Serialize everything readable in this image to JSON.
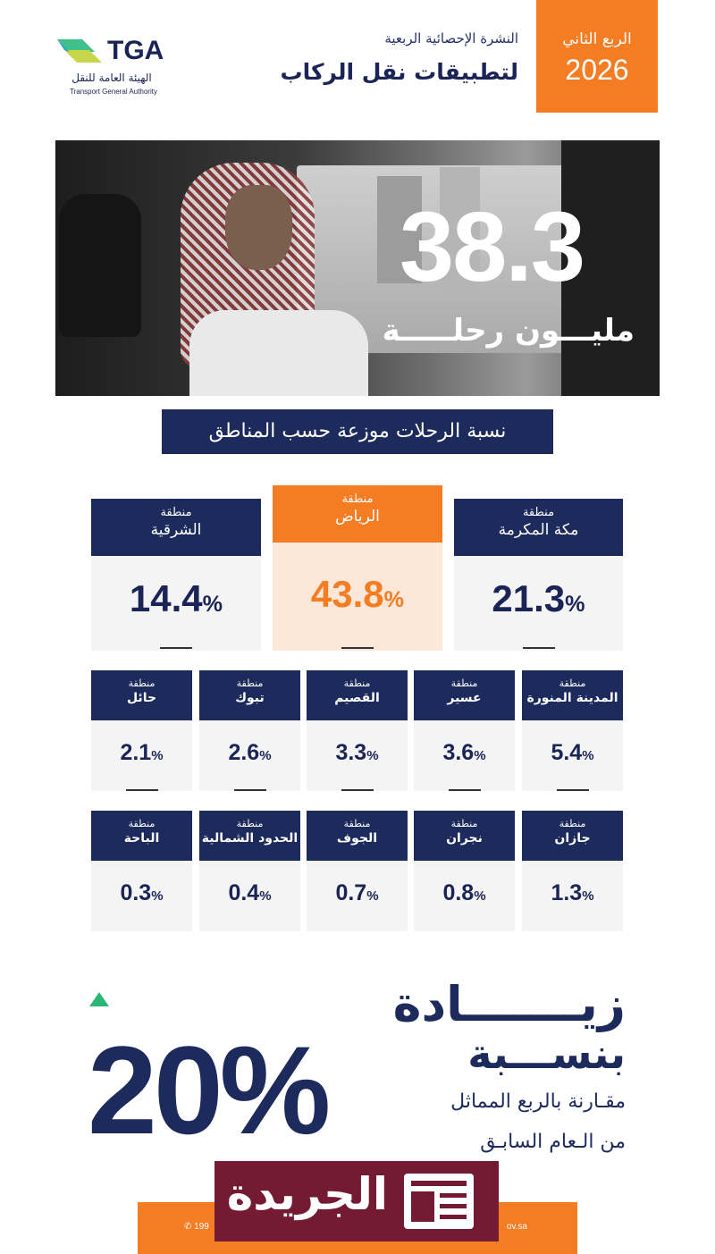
{
  "header": {
    "quarter": "الربع الثاني",
    "year": "2026",
    "bulletin": "النشرة الإحصائية الربعية",
    "title": "لتطبيقات نقل الركاب",
    "logo_mark": "TGA",
    "logo_ar": "الهيئة العامة للنقل",
    "logo_en": "Transport General Authority"
  },
  "hero": {
    "value": "38.3",
    "unit": "مليـــون رحلـــــة"
  },
  "section_title": "نسبة الرحلات موزعة حسب المناطق",
  "top_regions": [
    {
      "prefix": "منطقة",
      "name": "مكة المكرمة",
      "value": "21.3",
      "pct": "%"
    },
    {
      "prefix": "منطقة",
      "name": "الرياض",
      "value": "43.8",
      "pct": "%"
    },
    {
      "prefix": "منطقة",
      "name": "الشرقية",
      "value": "14.4",
      "pct": "%"
    }
  ],
  "row2": [
    {
      "prefix": "منطقة",
      "name": "المدينة المنورة",
      "value": "5.4",
      "pct": "%"
    },
    {
      "prefix": "منطقة",
      "name": "عسير",
      "value": "3.6",
      "pct": "%"
    },
    {
      "prefix": "منطقة",
      "name": "القصيم",
      "value": "3.3",
      "pct": "%"
    },
    {
      "prefix": "منطقة",
      "name": "تبوك",
      "value": "2.6",
      "pct": "%"
    },
    {
      "prefix": "منطقة",
      "name": "حائل",
      "value": "2.1",
      "pct": "%"
    }
  ],
  "row3": [
    {
      "prefix": "منطقة",
      "name": "جازان",
      "value": "1.3",
      "pct": "%"
    },
    {
      "prefix": "منطقة",
      "name": "نجران",
      "value": "0.8",
      "pct": "%"
    },
    {
      "prefix": "منطقة",
      "name": "الجوف",
      "value": "0.7",
      "pct": "%"
    },
    {
      "prefix": "منطقة",
      "name": "الحدود الشمالية",
      "value": "0.4",
      "pct": "%"
    },
    {
      "prefix": "منطقة",
      "name": "الباحة",
      "value": "0.3",
      "pct": "%"
    }
  ],
  "increase": {
    "word": "زيـــــــادة",
    "by": "بنســـبة",
    "value": "20%",
    "compare_line1": "مقـارنة بالربع المماثل",
    "compare_line2": "من الـعام السابـق",
    "arrow_color": "#2bb673"
  },
  "footer": {
    "phone": "199",
    "website": "ov.sa"
  },
  "watermark": {
    "text": "الجريدة",
    "icon": "newspaper-icon"
  },
  "colors": {
    "navy": "#1d2a5c",
    "orange": "#f47c22",
    "highlight_bg": "#fde7d8",
    "watermark": "#741a33"
  }
}
